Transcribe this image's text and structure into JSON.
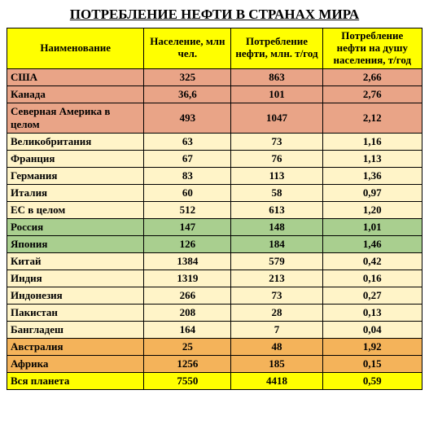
{
  "title": "ПОТРЕБЛЕНИЕ НЕФТИ В СТРАНАХ МИРА",
  "columns": [
    "Наименование",
    "Население, млн чел.",
    "Потребление нефти, млн. т/год",
    "Потребление нефти на душу населения, т/год"
  ],
  "row_colors": {
    "salmon": "#e9a487",
    "green": "#a9cf8f",
    "orange": "#f4b35a",
    "yellow": "#ffff00",
    "cream": "#fff4c8"
  },
  "rows": [
    {
      "name": "США",
      "pop": "325",
      "oil": "863",
      "pc": "2,66",
      "color": "salmon"
    },
    {
      "name": "Канада",
      "pop": "36,6",
      "oil": "101",
      "pc": "2,76",
      "color": "salmon"
    },
    {
      "name": "Северная Америка в целом",
      "pop": "493",
      "oil": "1047",
      "pc": "2,12",
      "color": "salmon"
    },
    {
      "name": "Великобритания",
      "pop": "63",
      "oil": "73",
      "pc": "1,16",
      "color": "cream"
    },
    {
      "name": "Франция",
      "pop": "67",
      "oil": "76",
      "pc": "1,13",
      "color": "cream"
    },
    {
      "name": "Германия",
      "pop": "83",
      "oil": "113",
      "pc": "1,36",
      "color": "cream"
    },
    {
      "name": "Италия",
      "pop": "60",
      "oil": "58",
      "pc": "0,97",
      "color": "cream"
    },
    {
      "name": "ЕС в целом",
      "pop": "512",
      "oil": "613",
      "pc": "1,20",
      "color": "cream"
    },
    {
      "name": "Россия",
      "pop": "147",
      "oil": "148",
      "pc": "1,01",
      "color": "green"
    },
    {
      "name": "Япония",
      "pop": "126",
      "oil": "184",
      "pc": "1,46",
      "color": "green"
    },
    {
      "name": "Китай",
      "pop": "1384",
      "oil": "579",
      "pc": "0,42",
      "color": "cream"
    },
    {
      "name": "Индия",
      "pop": "1319",
      "oil": "213",
      "pc": "0,16",
      "color": "cream"
    },
    {
      "name": "Индонезия",
      "pop": "266",
      "oil": "73",
      "pc": "0,27",
      "color": "cream"
    },
    {
      "name": "Пакистан",
      "pop": "208",
      "oil": "28",
      "pc": "0,13",
      "color": "cream"
    },
    {
      "name": "Бангладеш",
      "pop": "164",
      "oil": "7",
      "pc": "0,04",
      "color": "cream"
    },
    {
      "name": "Австралия",
      "pop": "25",
      "oil": "48",
      "pc": "1,92",
      "color": "orange"
    },
    {
      "name": "Африка",
      "pop": "1256",
      "oil": "185",
      "pc": "0,15",
      "color": "orange"
    },
    {
      "name": "Вся планета",
      "pop": "7550",
      "oil": "4418",
      "pc": "0,59",
      "color": "yellow"
    }
  ]
}
